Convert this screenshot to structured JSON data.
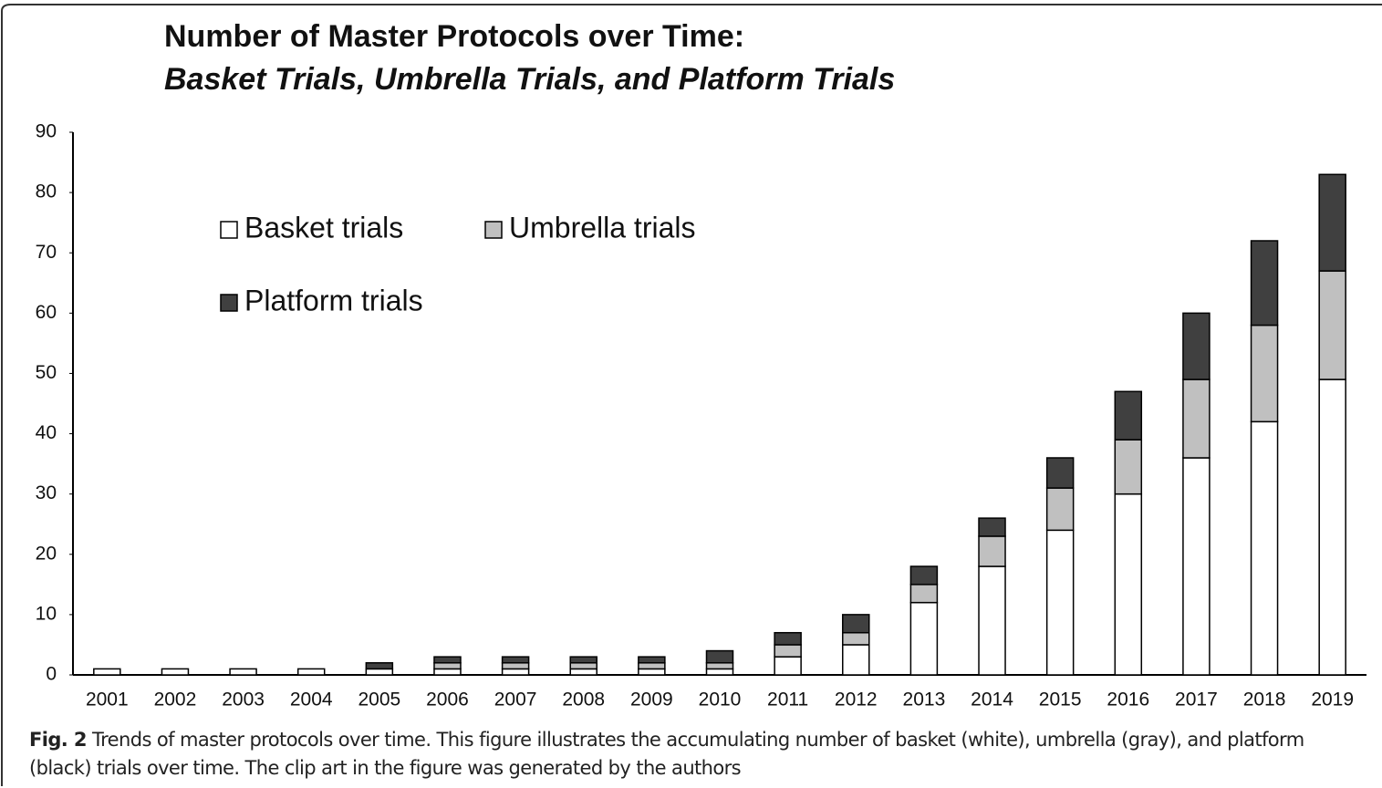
{
  "chart_data": {
    "type": "stacked-bar",
    "title": "Number of Master Protocols over Time:",
    "subtitle": "Basket Trials, Umbrella Trials, and Platform Trials",
    "categories": [
      "2001",
      "2002",
      "2003",
      "2004",
      "2005",
      "2006",
      "2007",
      "2008",
      "2009",
      "2010",
      "2011",
      "2012",
      "2013",
      "2014",
      "2015",
      "2016",
      "2017",
      "2018",
      "2019"
    ],
    "series": [
      {
        "name": "Basket trials",
        "color": "#ffffff",
        "values": [
          1,
          1,
          1,
          1,
          1,
          1,
          1,
          1,
          1,
          1,
          3,
          5,
          12,
          18,
          24,
          30,
          36,
          42,
          49
        ]
      },
      {
        "name": "Umbrella trials",
        "color": "#c0c0c0",
        "values": [
          0,
          0,
          0,
          0,
          0,
          1,
          1,
          1,
          1,
          1,
          2,
          2,
          3,
          5,
          7,
          9,
          13,
          16,
          18
        ]
      },
      {
        "name": "Platform trials",
        "color": "#404040",
        "values": [
          0,
          0,
          0,
          0,
          1,
          1,
          1,
          1,
          1,
          2,
          2,
          3,
          3,
          3,
          5,
          8,
          11,
          14,
          16
        ]
      }
    ],
    "ylim": [
      0,
      90
    ],
    "yticks": [
      0,
      10,
      20,
      30,
      40,
      50,
      60,
      70,
      80,
      90
    ],
    "grid": false,
    "caption_label": "Fig. 2",
    "caption": "Trends of master protocols over time. This figure illustrates the accumulating number of basket (white), umbrella (gray), and platform (black) trials over time. The clip art in the figure was generated by the authors"
  }
}
